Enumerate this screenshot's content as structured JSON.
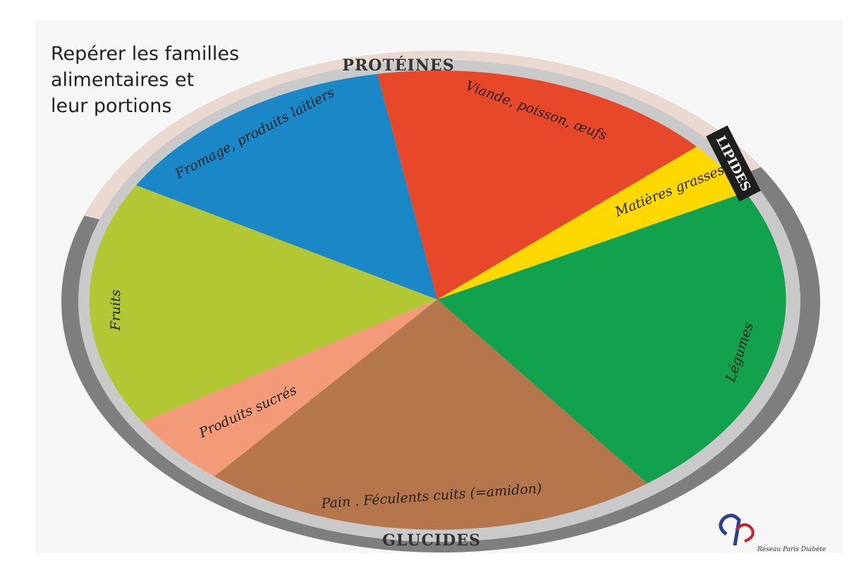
{
  "title": [
    "Repérer les familles",
    "alimentaires et",
    "leur portions"
  ],
  "rim_labels": {
    "top": "PROTÉINES",
    "right": "LIPIDES",
    "bottom": "GLUCIDES"
  },
  "segments": [
    {
      "label": "Fromage, produits laitiers"
    },
    {
      "label": "Viande, poisson, œufs"
    },
    {
      "label": "Matières grasses"
    },
    {
      "label": "Légumes"
    },
    {
      "label": "Pain . Féculents cuits (=amidon)"
    },
    {
      "label": "Produits sucrés"
    },
    {
      "label": "Fruits"
    }
  ],
  "logo": "Réseau Paris Diabète"
}
